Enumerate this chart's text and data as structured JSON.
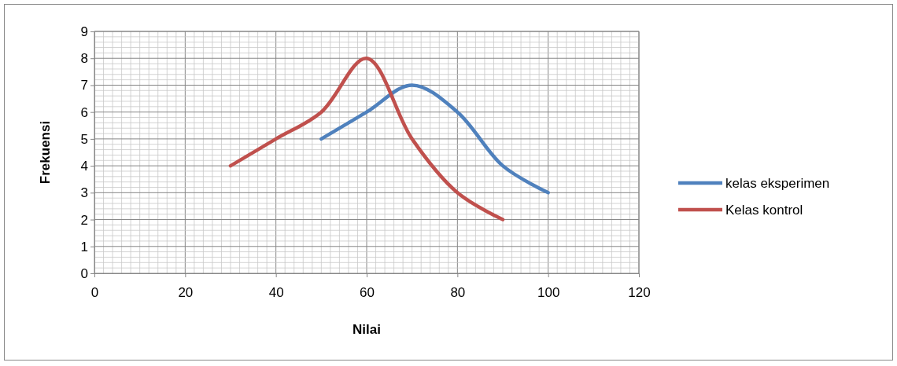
{
  "chart_data": {
    "type": "line",
    "xlabel": "Nilai",
    "ylabel": "Frekuensi",
    "xlim": [
      0,
      120
    ],
    "xticks": [
      0,
      20,
      40,
      60,
      80,
      100,
      120
    ],
    "ylim": [
      0,
      9
    ],
    "yticks": [
      0,
      1,
      2,
      3,
      4,
      5,
      6,
      7,
      8,
      9
    ],
    "grid": true,
    "legend": "right",
    "marker": "none",
    "series": [
      {
        "name": "kelas eksperimen",
        "color": "#4f81bd",
        "x": [
          50,
          60,
          70,
          80,
          90,
          100
        ],
        "values": [
          5,
          6,
          7,
          6,
          4,
          3
        ]
      },
      {
        "name": "Kelas kontrol",
        "color": "#c0504d",
        "x": [
          30,
          40,
          50,
          60,
          70,
          80,
          90
        ],
        "values": [
          4,
          5,
          6,
          8,
          5,
          3,
          2
        ]
      }
    ]
  }
}
